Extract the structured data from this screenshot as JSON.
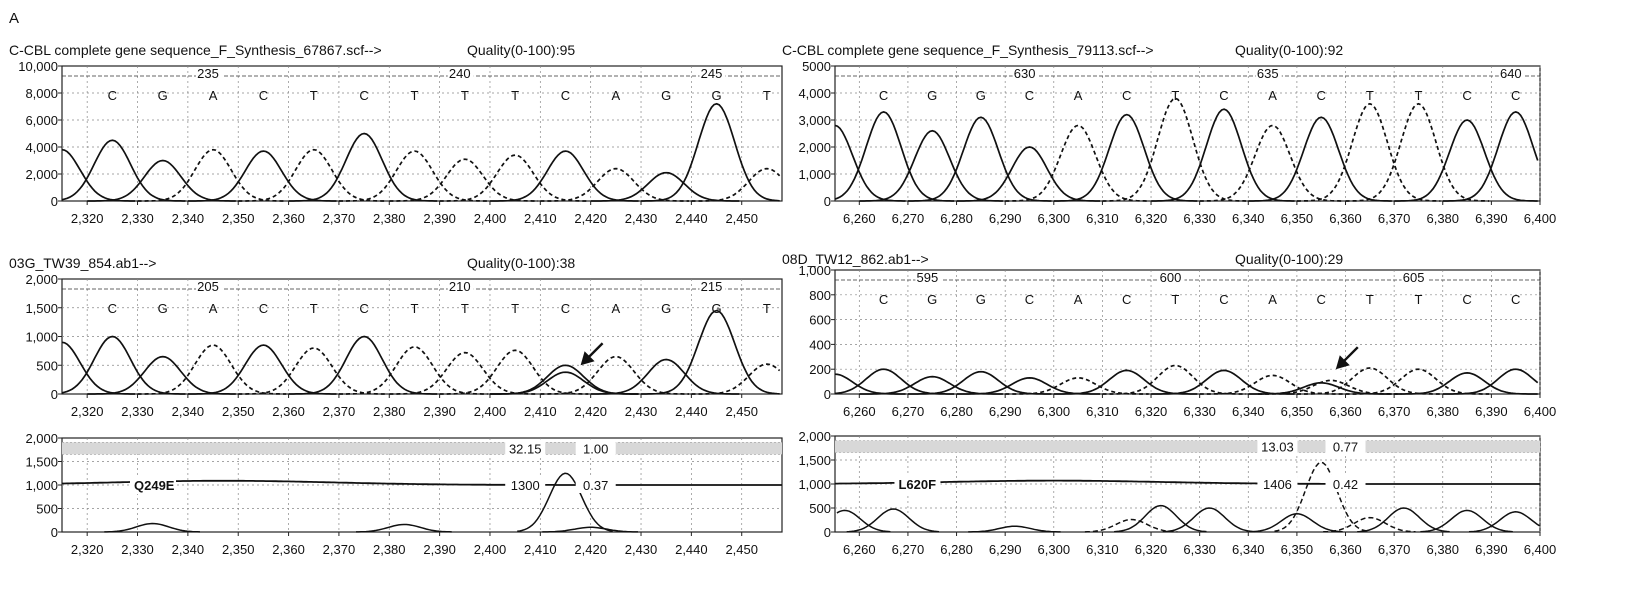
{
  "figure": {
    "label": "A"
  },
  "chart_data": [
    {
      "type": "line",
      "header": "C-CBL complete gene sequence_F_Synthesis_67867.scf-->",
      "quality": "Quality(0-100):95",
      "yticks": [
        "10,000",
        "8,000",
        "6,000",
        "4,000",
        "2,000",
        "0"
      ],
      "ylim": [
        0,
        10000
      ],
      "xlim": [
        2315,
        2458
      ],
      "xticks": [
        "2,320",
        "2,330",
        "2,340",
        "2,350",
        "2,360",
        "2,370",
        "2,380",
        "2,390",
        "2,400",
        "2,410",
        "2,420",
        "2,430",
        "2,440",
        "2,450"
      ],
      "position_labels": [
        {
          "text": "235",
          "x": 2344
        },
        {
          "text": "240",
          "x": 2394
        },
        {
          "text": "245",
          "x": 2444
        }
      ],
      "bases": [
        "C",
        "G",
        "A",
        "C",
        "T",
        "C",
        "T",
        "T",
        "T",
        "C",
        "A",
        "G",
        "G",
        "T"
      ],
      "base_x": [
        2325,
        2335,
        2345,
        2355,
        2365,
        2375,
        2385,
        2395,
        2405,
        2415,
        2425,
        2435,
        2445,
        2455
      ],
      "peaks": [
        {
          "base": "-",
          "x": 2315,
          "height": 3800
        },
        {
          "base": "C",
          "x": 2325,
          "height": 4500
        },
        {
          "base": "G",
          "x": 2335,
          "height": 3000
        },
        {
          "base": "A",
          "x": 2345,
          "height": 3800
        },
        {
          "base": "C",
          "x": 2355,
          "height": 3700
        },
        {
          "base": "T",
          "x": 2365,
          "height": 3800
        },
        {
          "base": "C",
          "x": 2375,
          "height": 5000
        },
        {
          "base": "T",
          "x": 2385,
          "height": 3700
        },
        {
          "base": "T",
          "x": 2395,
          "height": 3100
        },
        {
          "base": "T",
          "x": 2405,
          "height": 3400
        },
        {
          "base": "C",
          "x": 2415,
          "height": 3700
        },
        {
          "base": "A",
          "x": 2425,
          "height": 2400
        },
        {
          "base": "G",
          "x": 2435,
          "height": 2100
        },
        {
          "base": "G",
          "x": 2445,
          "height": 7200
        },
        {
          "base": "T",
          "x": 2455,
          "height": 2400
        }
      ],
      "grid": true
    },
    {
      "type": "line",
      "header": "C-CBL complete gene sequence_F_Synthesis_79113.scf-->",
      "quality": "Quality(0-100):92",
      "yticks": [
        "5000",
        "4,000",
        "3,000",
        "2,000",
        "1,000",
        "0"
      ],
      "ylim": [
        0,
        5000
      ],
      "xlim": [
        6255,
        6400
      ],
      "xticks": [
        "6,260",
        "6,270",
        "6,280",
        "6,290",
        "6,300",
        "6,310",
        "6,320",
        "6,330",
        "6,340",
        "6,350",
        "6,360",
        "6,370",
        "6,380",
        "6,390",
        "6,400"
      ],
      "position_labels": [
        {
          "text": "630",
          "x": 6294
        },
        {
          "text": "635",
          "x": 6344
        },
        {
          "text": "640",
          "x": 6394
        }
      ],
      "bases": [
        "C",
        "G",
        "G",
        "C",
        "A",
        "C",
        "T",
        "C",
        "A",
        "C",
        "T",
        "T",
        "C",
        "C"
      ],
      "base_x": [
        6265,
        6275,
        6285,
        6295,
        6305,
        6315,
        6325,
        6335,
        6345,
        6355,
        6365,
        6375,
        6385,
        6395
      ],
      "peaks": [
        {
          "base": "-",
          "x": 6255,
          "height": 2800
        },
        {
          "base": "C",
          "x": 6265,
          "height": 3300
        },
        {
          "base": "G",
          "x": 6275,
          "height": 2600
        },
        {
          "base": "G",
          "x": 6285,
          "height": 3100
        },
        {
          "base": "C",
          "x": 6295,
          "height": 2000
        },
        {
          "base": "A",
          "x": 6305,
          "height": 2800
        },
        {
          "base": "C",
          "x": 6315,
          "height": 3200
        },
        {
          "base": "T",
          "x": 6325,
          "height": 3800
        },
        {
          "base": "C",
          "x": 6335,
          "height": 3400
        },
        {
          "base": "A",
          "x": 6345,
          "height": 2800
        },
        {
          "base": "C",
          "x": 6355,
          "height": 3100
        },
        {
          "base": "T",
          "x": 6365,
          "height": 3600
        },
        {
          "base": "T",
          "x": 6375,
          "height": 3600
        },
        {
          "base": "C",
          "x": 6385,
          "height": 3000
        },
        {
          "base": "C",
          "x": 6395,
          "height": 3300
        }
      ],
      "grid": true
    },
    {
      "type": "line",
      "header": "03G_TW39_854.ab1-->",
      "quality": "Quality(0-100):38",
      "yticks": [
        "2,000",
        "1,500",
        "1,000",
        "500",
        "0"
      ],
      "ylim": [
        0,
        2000
      ],
      "xlim": [
        2315,
        2458
      ],
      "xticks": [
        "2,320",
        "2,330",
        "2,340",
        "2,350",
        "2,360",
        "2,370",
        "2,380",
        "2,390",
        "2,400",
        "2,410",
        "2,420",
        "2,430",
        "2,440",
        "2,450"
      ],
      "position_labels": [
        {
          "text": "205",
          "x": 2344
        },
        {
          "text": "210",
          "x": 2394
        },
        {
          "text": "215",
          "x": 2444
        }
      ],
      "bases": [
        "C",
        "G",
        "A",
        "C",
        "T",
        "C",
        "T",
        "T",
        "T",
        "C",
        "A",
        "G",
        "G",
        "T"
      ],
      "base_x": [
        2325,
        2335,
        2345,
        2355,
        2365,
        2375,
        2385,
        2395,
        2405,
        2415,
        2425,
        2435,
        2445,
        2455
      ],
      "peaks": [
        {
          "base": "-",
          "x": 2315,
          "height": 900
        },
        {
          "base": "C",
          "x": 2325,
          "height": 1000
        },
        {
          "base": "G",
          "x": 2335,
          "height": 650
        },
        {
          "base": "A",
          "x": 2345,
          "height": 850
        },
        {
          "base": "C",
          "x": 2355,
          "height": 850
        },
        {
          "base": "T",
          "x": 2365,
          "height": 800
        },
        {
          "base": "C",
          "x": 2375,
          "height": 1000
        },
        {
          "base": "T",
          "x": 2385,
          "height": 820
        },
        {
          "base": "T",
          "x": 2395,
          "height": 720
        },
        {
          "base": "T",
          "x": 2405,
          "height": 760
        },
        {
          "base": "C",
          "x": 2415,
          "height": 500
        },
        {
          "base": "G",
          "x": 2415,
          "height": 380
        },
        {
          "base": "A",
          "x": 2425,
          "height": 650
        },
        {
          "base": "G",
          "x": 2435,
          "height": 600
        },
        {
          "base": "G",
          "x": 2445,
          "height": 1450
        },
        {
          "base": "T",
          "x": 2455,
          "height": 520
        }
      ],
      "arrow_at": {
        "x": 2418,
        "y": 500
      },
      "grid": true
    },
    {
      "type": "line",
      "header": "08D_TW12_862.ab1-->",
      "quality": "Quality(0-100):29",
      "yticks": [
        "1,000",
        "800",
        "600",
        "400",
        "200",
        "0"
      ],
      "ylim": [
        0,
        1000
      ],
      "xlim": [
        6255,
        6400
      ],
      "xticks": [
        "6,260",
        "6,270",
        "6,280",
        "6,290",
        "6,300",
        "6,310",
        "6,320",
        "6,330",
        "6,340",
        "6,350",
        "6,360",
        "6,370",
        "6,380",
        "6,390",
        "6,400"
      ],
      "position_labels": [
        {
          "text": "595",
          "x": 6274
        },
        {
          "text": "600",
          "x": 6324
        },
        {
          "text": "605",
          "x": 6374
        }
      ],
      "bases": [
        "C",
        "G",
        "G",
        "C",
        "A",
        "C",
        "T",
        "C",
        "A",
        "C",
        "T",
        "T",
        "C",
        "C"
      ],
      "base_x": [
        6265,
        6275,
        6285,
        6295,
        6305,
        6315,
        6325,
        6335,
        6345,
        6355,
        6365,
        6375,
        6385,
        6395
      ],
      "peaks": [
        {
          "base": "-",
          "x": 6255,
          "height": 160
        },
        {
          "base": "C",
          "x": 6265,
          "height": 200
        },
        {
          "base": "G",
          "x": 6275,
          "height": 140
        },
        {
          "base": "G",
          "x": 6285,
          "height": 180
        },
        {
          "base": "C",
          "x": 6295,
          "height": 130
        },
        {
          "base": "A",
          "x": 6305,
          "height": 130
        },
        {
          "base": "C",
          "x": 6315,
          "height": 190
        },
        {
          "base": "T",
          "x": 6325,
          "height": 230
        },
        {
          "base": "C",
          "x": 6335,
          "height": 190
        },
        {
          "base": "A",
          "x": 6345,
          "height": 150
        },
        {
          "base": "C",
          "x": 6355,
          "height": 90
        },
        {
          "base": "T",
          "x": 6357,
          "height": 110
        },
        {
          "base": "T",
          "x": 6365,
          "height": 210
        },
        {
          "base": "T",
          "x": 6375,
          "height": 200
        },
        {
          "base": "C",
          "x": 6385,
          "height": 170
        },
        {
          "base": "C",
          "x": 6395,
          "height": 200
        }
      ],
      "arrow_at": {
        "x": 6358,
        "y": 200
      },
      "grid": true
    },
    {
      "type": "line",
      "yticks": [
        "2,000",
        "1,500",
        "1,000",
        "500",
        "0"
      ],
      "ylim": [
        0,
        2000
      ],
      "xlim": [
        2315,
        2458
      ],
      "xticks": [
        "2,320",
        "2,330",
        "2,340",
        "2,350",
        "2,360",
        "2,370",
        "2,380",
        "2,390",
        "2,400",
        "2,410",
        "2,420",
        "2,430",
        "2,440",
        "2,450"
      ],
      "mutation": "Q249E",
      "annotations": [
        {
          "text": "32.15",
          "x": 2407,
          "y": 1780
        },
        {
          "text": "1.00",
          "x": 2421,
          "y": 1780
        },
        {
          "text": "1300",
          "x": 2407,
          "y": 1000
        },
        {
          "text": "0.37",
          "x": 2421,
          "y": 1000
        }
      ],
      "band_y": 1780,
      "baseline_y": 1000,
      "hump": {
        "x": 2347,
        "height": 90,
        "width": 22
      },
      "difference_peaks": [
        {
          "x": 2415,
          "height": 1250
        },
        {
          "x": 2333,
          "height": 180
        },
        {
          "x": 2383,
          "height": 160
        },
        {
          "x": 2420,
          "height": 100
        }
      ],
      "grid": true
    },
    {
      "type": "line",
      "yticks": [
        "2,000",
        "1,500",
        "1,000",
        "500",
        "0"
      ],
      "ylim": [
        0,
        2000
      ],
      "xlim": [
        6255,
        6400
      ],
      "xticks": [
        "6,260",
        "6,270",
        "6,280",
        "6,290",
        "6,300",
        "6,310",
        "6,320",
        "6,330",
        "6,340",
        "6,350",
        "6,360",
        "6,370",
        "6,380",
        "6,390",
        "6,400"
      ],
      "mutation": "L620F",
      "annotations": [
        {
          "text": "13.03",
          "x": 6346,
          "y": 1780
        },
        {
          "text": "0.77",
          "x": 6360,
          "y": 1780
        },
        {
          "text": "1406",
          "x": 6346,
          "y": 1000
        },
        {
          "text": "0.42",
          "x": 6360,
          "y": 1000
        }
      ],
      "band_y": 1780,
      "baseline_y": 1000,
      "hump": {
        "x": 6300,
        "height": 70,
        "width": 22
      },
      "difference_peaks": [
        {
          "x": 6355,
          "height": 1450,
          "dashed": true
        },
        {
          "x": 6257,
          "height": 450
        },
        {
          "x": 6267,
          "height": 480
        },
        {
          "x": 6292,
          "height": 120
        },
        {
          "x": 6322,
          "height": 550
        },
        {
          "x": 6332,
          "height": 500
        },
        {
          "x": 6350,
          "height": 380
        },
        {
          "x": 6372,
          "height": 500
        },
        {
          "x": 6385,
          "height": 450
        },
        {
          "x": 6395,
          "height": 420
        },
        {
          "x": 6316,
          "height": 260,
          "dashed": true
        },
        {
          "x": 6365,
          "height": 300,
          "dashed": true
        }
      ],
      "grid": true
    }
  ]
}
